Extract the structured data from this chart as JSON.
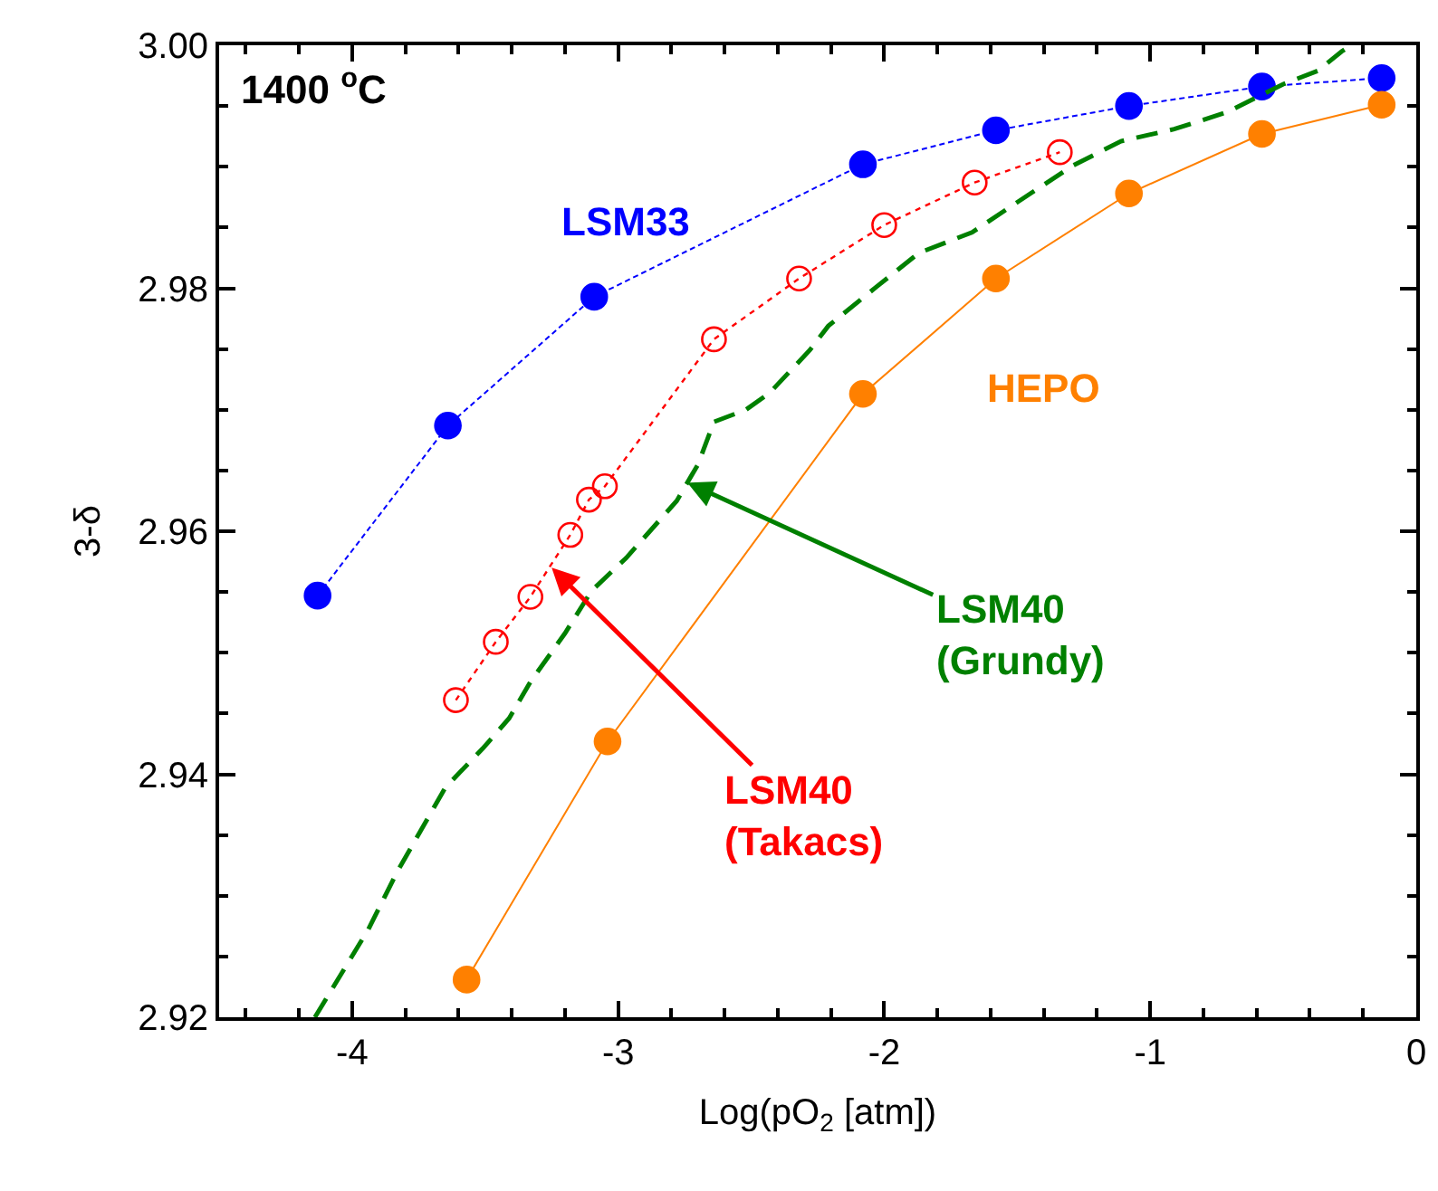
{
  "chart_data": {
    "type": "line",
    "xlabel": "Log(pO$_{2}$ [atm])",
    "ylabel": "3-δ",
    "xlim": [
      -4.5,
      0
    ],
    "xticks": [
      -4,
      -3,
      -2,
      -1,
      0
    ],
    "ylim": [
      2.92,
      3.0
    ],
    "yticks": [
      {
        "value": 2.92,
        "label": "2.92"
      },
      {
        "value": 2.94,
        "label": "2.94"
      },
      {
        "value": 2.96,
        "label": "2.96"
      },
      {
        "value": 2.98,
        "label": "2.98"
      },
      {
        "value": 3.0,
        "label": "3.00"
      }
    ],
    "legend": false,
    "series": [
      {
        "name": "LSM33",
        "color": "#0000ff",
        "marker": "circle",
        "line_style": "dashed",
        "x": [
          -4.13,
          -3.64,
          -3.09,
          -2.08,
          -1.58,
          -1.08,
          -0.58,
          -0.13
        ],
        "values": [
          2.9547,
          2.9687,
          2.9793,
          2.9902,
          2.993,
          2.995,
          2.9966,
          2.9973
        ]
      },
      {
        "name": "HEPO",
        "color": "#ff8000",
        "marker": "circle",
        "line_style": "solid",
        "x": [
          -3.57,
          -3.04,
          -2.08,
          -1.58,
          -1.08,
          -0.58,
          -0.13
        ],
        "values": [
          2.9231,
          2.9427,
          2.9713,
          2.9808,
          2.9878,
          2.9927,
          2.9951
        ]
      },
      {
        "color": "#ff0000",
        "marker": "circle-open",
        "line_style": "dotted",
        "x": [
          -3.61,
          -3.46,
          -3.33,
          -3.18,
          -3.11,
          -3.05,
          -2.64,
          -2.32,
          -2.0,
          -1.66,
          -1.34
        ],
        "values": [
          2.9461,
          2.9509,
          2.9546,
          2.9597,
          2.9626,
          2.9637,
          2.9758,
          2.9808,
          2.9852,
          2.9887,
          2.9912
        ]
      },
      {
        "color": "#008000",
        "marker": "none",
        "line_style": "dashed",
        "x": [
          -4.14,
          -3.94,
          -3.83,
          -3.65,
          -3.51,
          -3.41,
          -3.33,
          -3.2,
          -3.1,
          -2.97,
          -2.78,
          -2.7,
          -2.64,
          -2.52,
          -2.43,
          -2.28,
          -2.21,
          -2.03,
          -1.87,
          -1.67,
          -1.45,
          -1.29,
          -1.11,
          -0.91,
          -0.71,
          -0.5,
          -0.37,
          -0.28,
          -0.245
        ],
        "values": [
          2.92,
          2.9272,
          2.932,
          2.9389,
          2.9421,
          2.9446,
          2.9476,
          2.9516,
          2.9551,
          2.9578,
          2.9625,
          2.9655,
          2.969,
          2.97,
          2.9714,
          2.9749,
          2.9769,
          2.9801,
          2.9829,
          2.9846,
          2.9878,
          2.9901,
          2.9921,
          2.9931,
          2.9945,
          2.9968,
          2.9979,
          2.9995,
          3.0
        ]
      }
    ],
    "annotations": [
      "1400 $^{o}$C",
      {
        "text": "LSM40 (Takacs)",
        "x": -3.25,
        "y": 2.957
      },
      {
        "text": "LSM40 (Grundy)",
        "x": -2.74,
        "y": 2.964
      }
    ]
  }
}
